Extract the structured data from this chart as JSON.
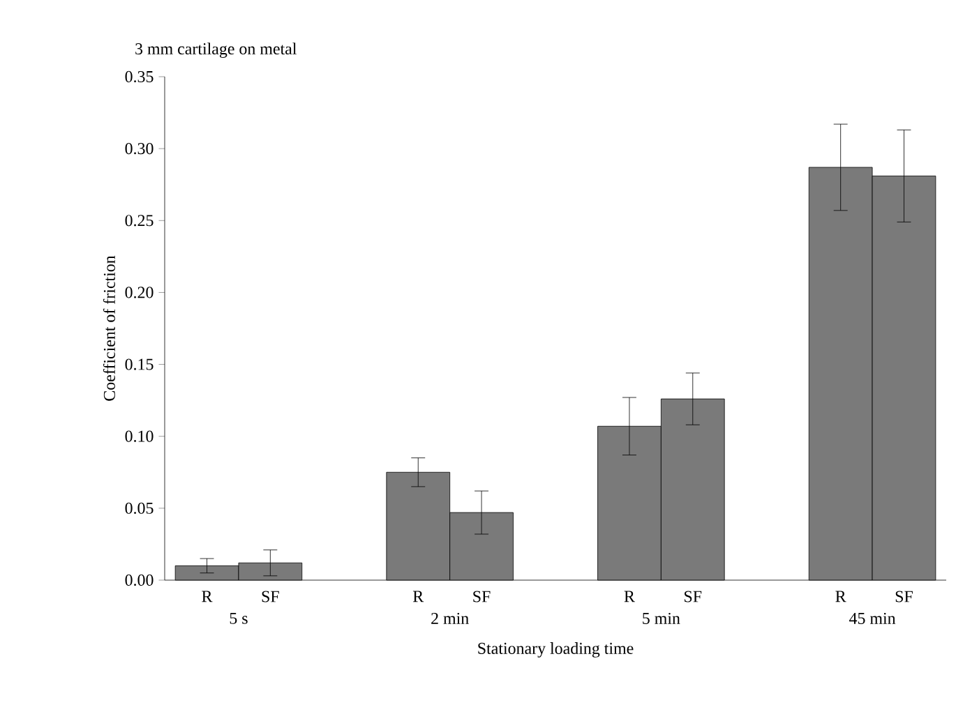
{
  "chart_data": {
    "type": "bar",
    "title": "3 mm cartilage on metal",
    "xlabel": "Stationary loading time",
    "ylabel": "Coefficient of friction",
    "categories": [
      "5 s",
      "2 min",
      "5 min",
      "45 min"
    ],
    "series": [
      {
        "name": "R",
        "color": "#7a7a7a",
        "values": [
          0.01,
          0.075,
          0.107,
          0.287
        ],
        "errors": [
          0.005,
          0.01,
          0.02,
          0.03
        ]
      },
      {
        "name": "SF",
        "color": "#7a7a7a",
        "values": [
          0.012,
          0.047,
          0.126,
          0.281
        ],
        "errors": [
          0.009,
          0.015,
          0.018,
          0.032
        ]
      }
    ],
    "ylim": [
      0,
      0.35
    ],
    "yticks": [
      {
        "value": 0,
        "label": "0.00"
      },
      {
        "value": 0.05,
        "label": "0.05"
      },
      {
        "value": 0.1,
        "label": "0.10"
      },
      {
        "value": 0.15,
        "label": "0.15"
      },
      {
        "value": 0.2,
        "label": "0.20"
      },
      {
        "value": 0.25,
        "label": "0.25"
      },
      {
        "value": 0.3,
        "label": "0.30"
      },
      {
        "value": 0.35,
        "label": "0.35"
      }
    ]
  }
}
